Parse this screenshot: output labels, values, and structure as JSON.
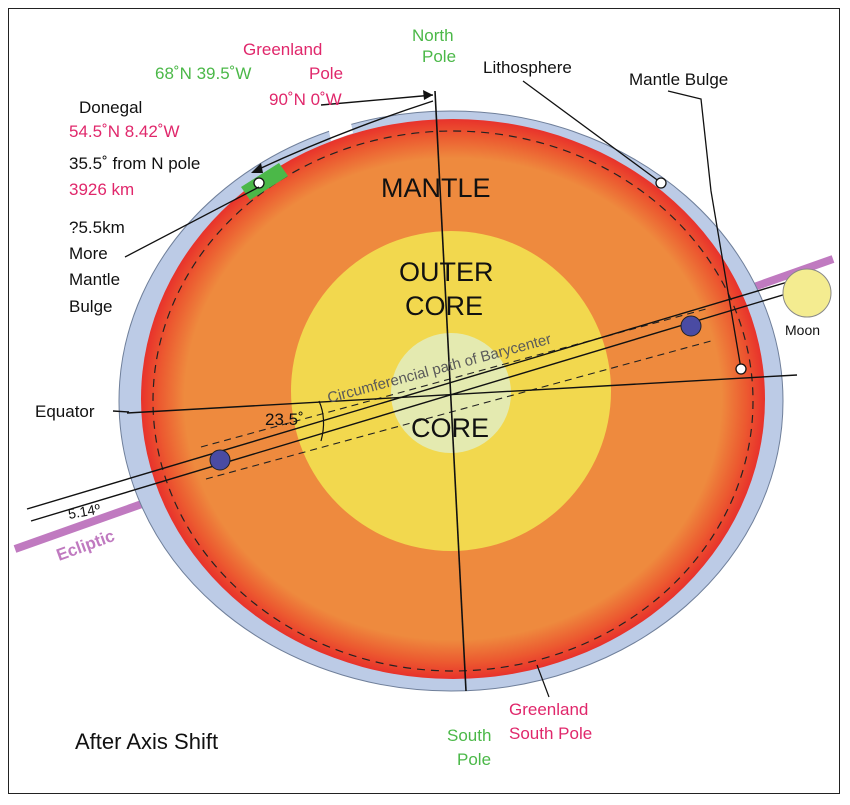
{
  "labels": {
    "north_pole_1": "North",
    "north_pole_2": "Pole",
    "greenland_1": "Greenland",
    "greenland_coord": "68˚N 39.5˚W",
    "greenland_pole": "Pole",
    "pole_coord": "90˚N 0˚W",
    "lithosphere": "Lithosphere",
    "mantle_bulge": "Mantle Bulge",
    "donegal": "Donegal",
    "donegal_coord": "54.5˚N 8.42˚W",
    "from_n_pole": "35.5˚ from N pole",
    "distance": "3926 km",
    "more_1": "?5.5km",
    "more_2": "More",
    "more_3": "Mantle",
    "more_4": "Bulge",
    "mantle": "MANTLE",
    "outer_core_1": "OUTER",
    "outer_core_2": "CORE",
    "core": "CORE",
    "barycenter": "Circumferencial path of Barycenter",
    "equator": "Equator",
    "tilt": "23.5˚",
    "moon": "Moon",
    "ecliptic": "Ecliptic",
    "ecliptic_angle": "5.14º",
    "south_pole_1": "South",
    "south_pole_2": "Pole",
    "greenland_south_1": "Greenland",
    "greenland_south_2": "South Pole",
    "caption": "After Axis Shift"
  },
  "colors": {
    "lithosphere": "#bccbe6",
    "mantle_edge": "#e8322b",
    "mantle": "#ee8a3e",
    "outer_core": "#f2d84e",
    "inner_core": "#e4eab0",
    "moon": "#f4ec90",
    "ecliptic": "#c07ac0",
    "barycenter_dot": "#4a4ba3",
    "green_patch": "#4bb848",
    "pink_text": "#e0276b",
    "green_text": "#4bb848"
  }
}
